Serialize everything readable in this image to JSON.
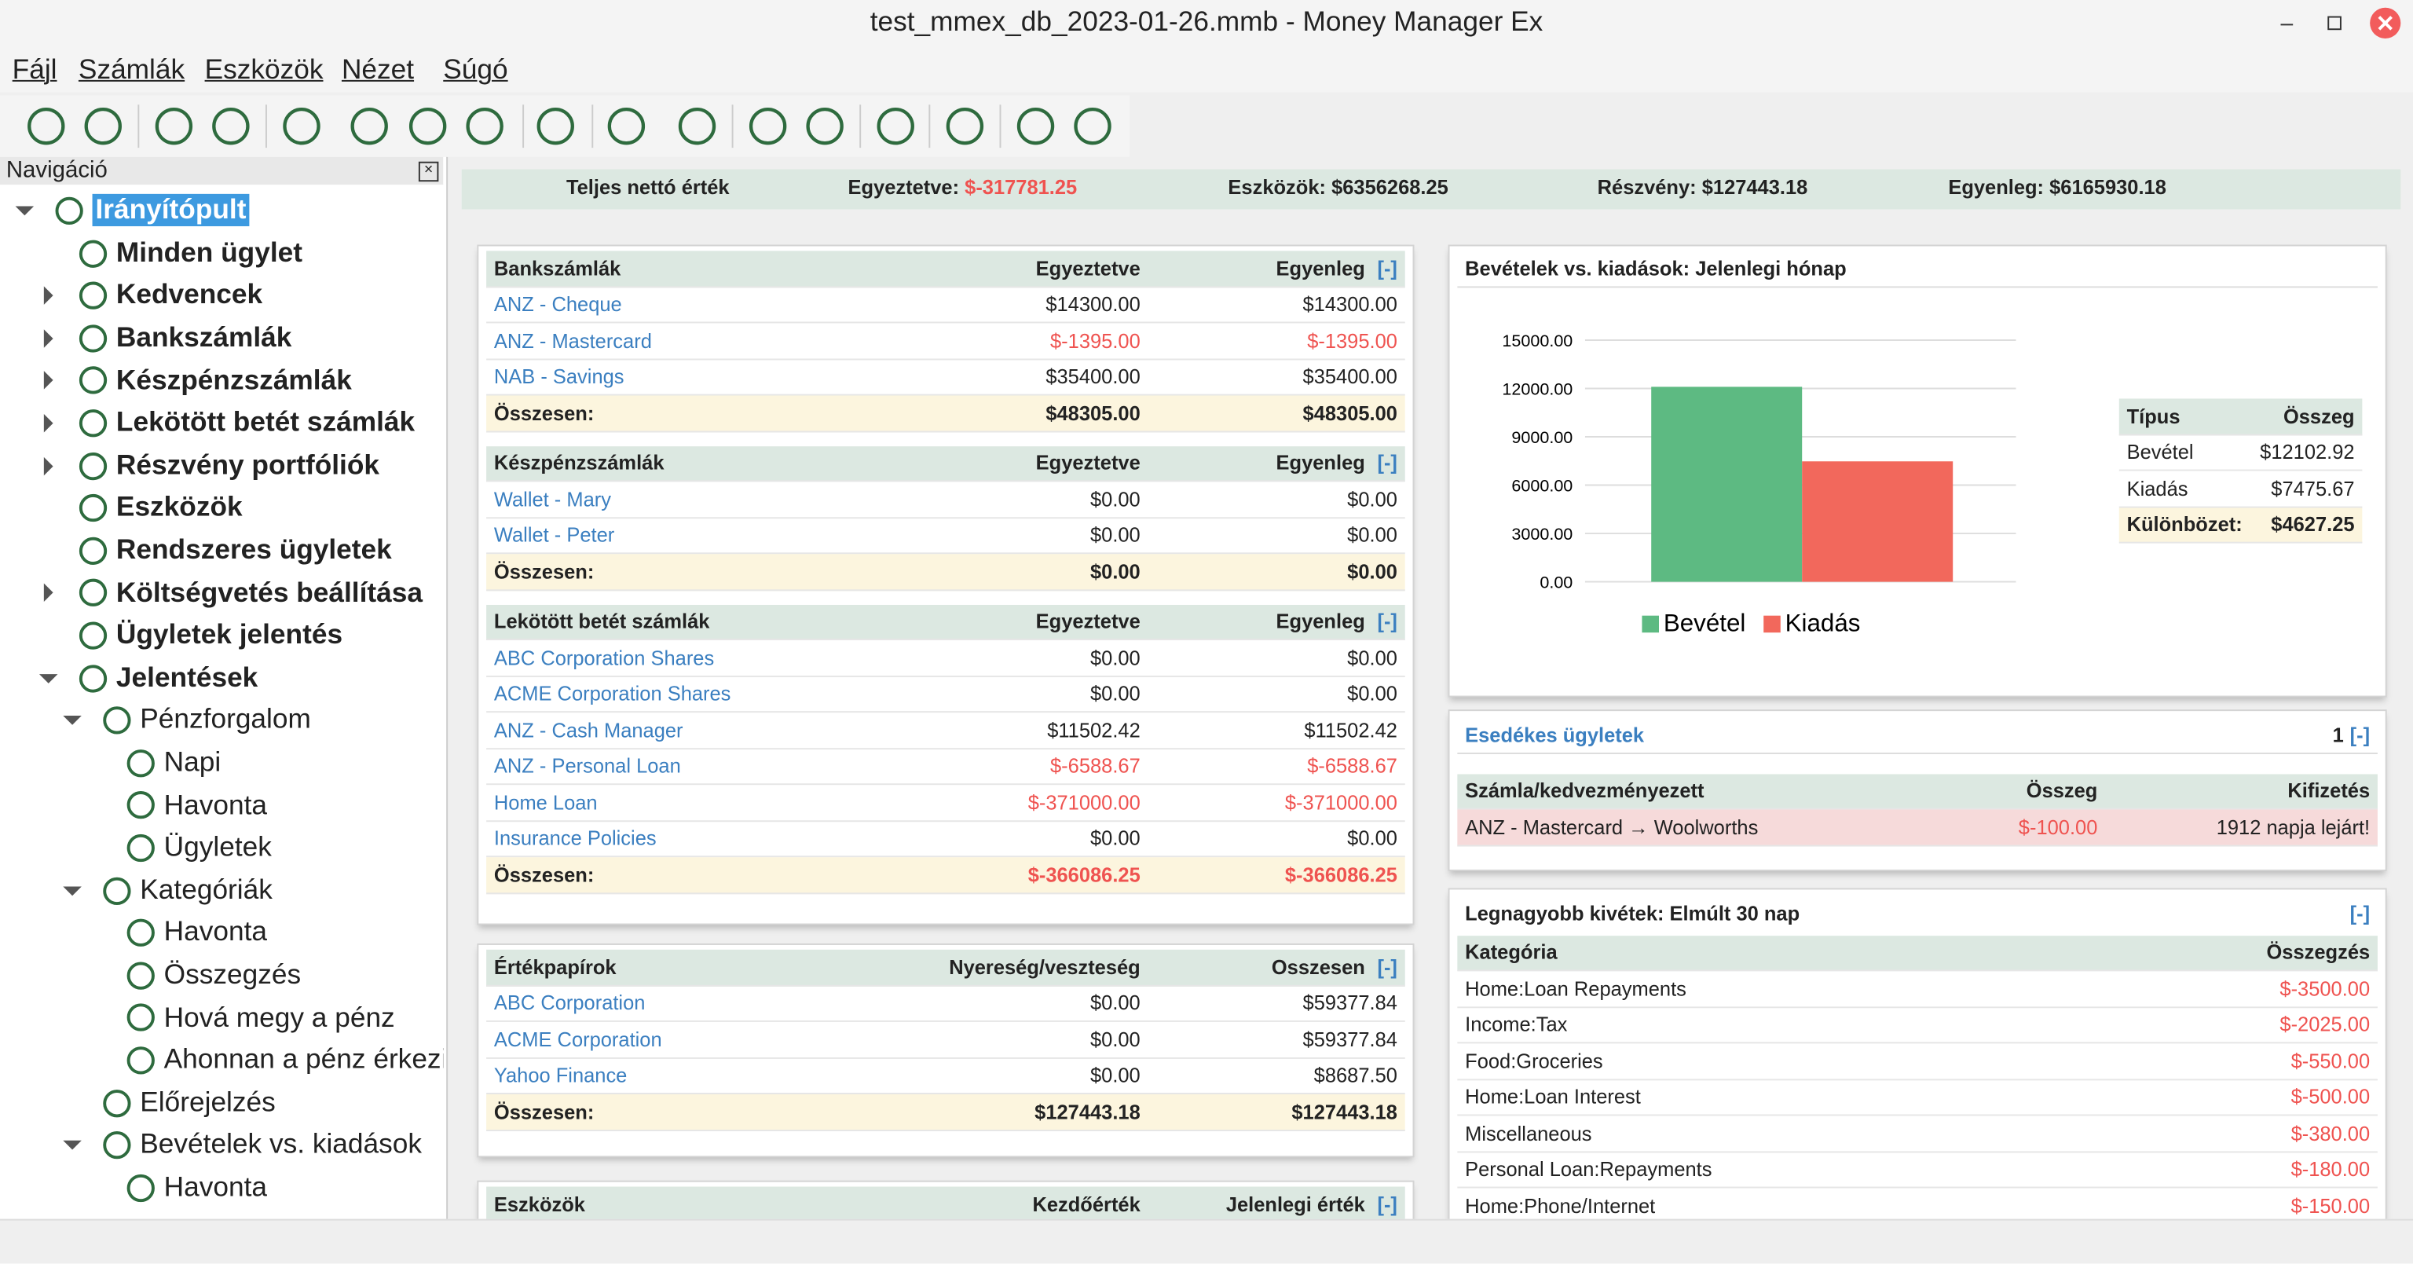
{
  "window": {
    "title": "test_mmex_db_2023-01-26.mmb - Money Manager Ex"
  },
  "menu": [
    "Fájl",
    "Számlák",
    "Eszközök",
    "Nézet",
    "Súgó"
  ],
  "nav": {
    "title": "Navigáció",
    "tree": {
      "label": "Irányítópult",
      "selected": true,
      "children": [
        {
          "label": "Minden ügylet"
        },
        {
          "label": "Kedvencek",
          "collapsed": true
        },
        {
          "label": "Bankszámlák",
          "collapsed": true
        },
        {
          "label": "Készpénzszámlák",
          "collapsed": true
        },
        {
          "label": "Lekötött betét számlák",
          "collapsed": true
        },
        {
          "label": "Részvény portfóliók",
          "collapsed": true
        },
        {
          "label": "Eszközök"
        },
        {
          "label": "Rendszeres ügyletek"
        },
        {
          "label": "Költségvetés beállítása",
          "collapsed": true
        },
        {
          "label": "Ügyletek jelentés"
        },
        {
          "label": "Jelentések",
          "children": [
            {
              "label": "Pénzforgalom",
              "children": [
                {
                  "label": "Napi"
                },
                {
                  "label": "Havonta"
                },
                {
                  "label": "Ügyletek"
                }
              ]
            },
            {
              "label": "Kategóriák",
              "children": [
                {
                  "label": "Havonta"
                },
                {
                  "label": "Összegzés"
                },
                {
                  "label": "Hová megy a pénz"
                },
                {
                  "label": "Ahonnan a pénz érkezik"
                }
              ]
            },
            {
              "label": "Előrejelzés"
            },
            {
              "label": "Bevételek vs. kiadások",
              "children": [
                {
                  "label": "Havonta"
                }
              ]
            }
          ]
        }
      ]
    }
  },
  "summary": {
    "title": "Teljes nettó érték",
    "items": [
      {
        "label": "Egyeztetve:",
        "value": "$-317781.25"
      },
      {
        "label": "Eszközök:",
        "value": "$6356268.25"
      },
      {
        "label": "Részvény:",
        "value": "$127443.18"
      },
      {
        "label": "Egyenleg:",
        "value": "$6165930.18"
      }
    ]
  },
  "left_cards": [
    {
      "tables": [
        {
          "title": "Bankszámlák",
          "columns": [
            "Egyeztetve",
            "Egyenleg"
          ],
          "collapse": "[-]",
          "rows": [
            [
              "ANZ - Cheque",
              "$14300.00",
              "$14300.00"
            ],
            [
              "ANZ - Mastercard",
              "$-1395.00",
              "$-1395.00"
            ],
            [
              "NAB - Savings",
              "$35400.00",
              "$35400.00"
            ]
          ],
          "total": [
            "Összesen:",
            "$48305.00",
            "$48305.00"
          ]
        },
        {
          "title": "Készpénzszámlák",
          "columns": [
            "Egyeztetve",
            "Egyenleg"
          ],
          "collapse": "[-]",
          "rows": [
            [
              "Wallet - Mary",
              "$0.00",
              "$0.00"
            ],
            [
              "Wallet - Peter",
              "$0.00",
              "$0.00"
            ]
          ],
          "total": [
            "Összesen:",
            "$0.00",
            "$0.00"
          ]
        },
        {
          "title": "Lekötött betét számlák",
          "columns": [
            "Egyeztetve",
            "Egyenleg"
          ],
          "collapse": "[-]",
          "rows": [
            [
              "ABC Corporation Shares",
              "$0.00",
              "$0.00"
            ],
            [
              "ACME Corporation Shares",
              "$0.00",
              "$0.00"
            ],
            [
              "ANZ - Cash Manager",
              "$11502.42",
              "$11502.42"
            ],
            [
              "ANZ - Personal Loan",
              "$-6588.67",
              "$-6588.67"
            ],
            [
              "Home Loan",
              "$-371000.00",
              "$-371000.00"
            ],
            [
              "Insurance Policies",
              "$0.00",
              "$0.00"
            ]
          ],
          "total": [
            "Összesen:",
            "$-366086.25",
            "$-366086.25"
          ]
        }
      ]
    },
    {
      "tables": [
        {
          "title": "Értékpapírok",
          "columns": [
            "Nyereség/veszteség",
            "Osszesen"
          ],
          "collapse": "[-]",
          "rows": [
            [
              "ABC Corporation",
              "$0.00",
              "$59377.84"
            ],
            [
              "ACME Corporation",
              "$0.00",
              "$59377.84"
            ],
            [
              "Yahoo Finance",
              "$0.00",
              "$8687.50"
            ]
          ],
          "total": [
            "Összesen:",
            "$127443.18",
            "$127443.18"
          ]
        }
      ]
    },
    {
      "tables": [
        {
          "title": "Eszközök",
          "columns": [
            "Kezdőérték",
            "Jelenlegi érték"
          ],
          "collapse": "[-]",
          "rows": []
        }
      ]
    }
  ],
  "chart_data": {
    "type": "bar",
    "title": "Bevételek vs. kiadások: Jelenlegi hónap",
    "ylim": [
      0,
      15000
    ],
    "yticks": [
      {
        "value": 0,
        "label": "0.00"
      },
      {
        "value": 3000,
        "label": "3000.00"
      },
      {
        "value": 6000,
        "label": "6000.00"
      },
      {
        "value": 9000,
        "label": "9000.00"
      },
      {
        "value": 12000,
        "label": "12000.00"
      },
      {
        "value": 15000,
        "label": "15000.00"
      }
    ],
    "grid": true,
    "series": [
      {
        "name": "Bevétel",
        "color": "#5dba82",
        "values": [
          12102.92
        ]
      },
      {
        "name": "Kiadás",
        "color": "#f2685c",
        "values": [
          7475.67
        ]
      }
    ],
    "table": {
      "columns": [
        "Típus",
        "Összeg"
      ],
      "rows": [
        [
          "Bevétel",
          "$12102.92"
        ],
        [
          "Kiadás",
          "$7475.67"
        ]
      ],
      "total": [
        "Különbözet:",
        "$4627.25"
      ]
    }
  },
  "due": {
    "title": "Esedékes ügyletek",
    "count": "1",
    "collapse": "[-]",
    "columns": [
      "Számla/kedvezményezett",
      "Összeg",
      "Kifizetés"
    ],
    "rows": [
      [
        "ANZ - Mastercard → Woolworths",
        "$-100.00",
        "1912 napja lejárt!"
      ]
    ]
  },
  "withdrawals": {
    "title": "Legnagyobb kivétek: Elmúlt 30 nap",
    "collapse": "[-]",
    "columns": [
      "Kategória",
      "Összegzés"
    ],
    "rows": [
      [
        "Home:Loan Repayments",
        "$-3500.00"
      ],
      [
        "Income:Tax",
        "$-2025.00"
      ],
      [
        "Food:Groceries",
        "$-550.00"
      ],
      [
        "Home:Loan Interest",
        "$-500.00"
      ],
      [
        "Miscellaneous",
        "$-380.00"
      ],
      [
        "Personal Loan:Repayments",
        "$-180.00"
      ],
      [
        "Home:Phone/Internet",
        "$-150.00"
      ]
    ]
  }
}
